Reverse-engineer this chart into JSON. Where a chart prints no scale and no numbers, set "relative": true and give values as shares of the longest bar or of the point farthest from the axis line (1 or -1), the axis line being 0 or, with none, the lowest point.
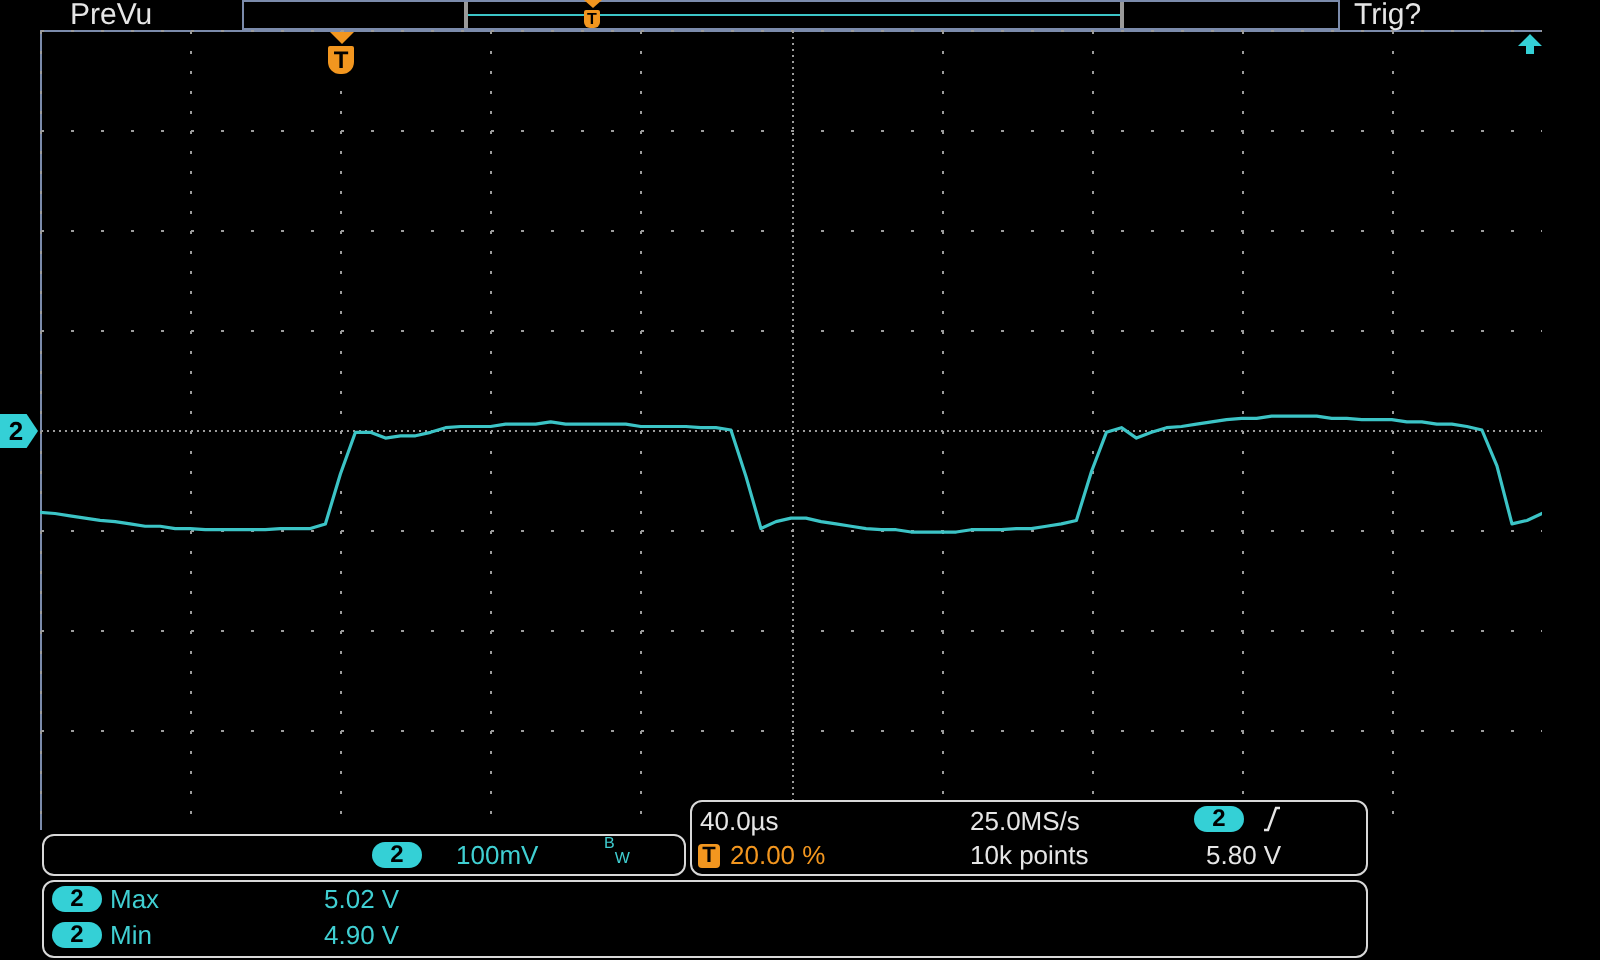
{
  "chart_data": {
    "type": "line",
    "relative": true,
    "categories": [
      null,
      null,
      null,
      null,
      null,
      null,
      null,
      null,
      null,
      null,
      null,
      null,
      null,
      null,
      null,
      null,
      null,
      null,
      null,
      null,
      null,
      null,
      null,
      null,
      null,
      null,
      null,
      null,
      null,
      null,
      null,
      null,
      null,
      null,
      null,
      null,
      null,
      null,
      null,
      null,
      null,
      null,
      null,
      null,
      null,
      null,
      null,
      null,
      null,
      null,
      null,
      null,
      null,
      null,
      null,
      null,
      null,
      null,
      null,
      null,
      null,
      null,
      null,
      null,
      null,
      null,
      null,
      null,
      null,
      null,
      null,
      null,
      null,
      null,
      null,
      null,
      null,
      null,
      null,
      null,
      null,
      null,
      null,
      null,
      null,
      null,
      null,
      null,
      null,
      null,
      null,
      null,
      null,
      null,
      null,
      null,
      null,
      null,
      null,
      null,
      null
    ],
    "values": [
      0.17,
      0.16,
      0.14,
      0.12,
      0.1,
      0.09,
      0.07,
      0.05,
      0.05,
      0.03,
      0.03,
      0.02,
      0.02,
      0.02,
      0.02,
      0.02,
      0.03,
      0.03,
      0.03,
      0.07,
      0.5,
      0.86,
      0.86,
      0.81,
      0.83,
      0.83,
      0.86,
      0.9,
      0.91,
      0.91,
      0.91,
      0.93,
      0.93,
      0.93,
      0.95,
      0.93,
      0.93,
      0.93,
      0.93,
      0.93,
      0.91,
      0.91,
      0.91,
      0.91,
      0.9,
      0.9,
      0.88,
      0.48,
      0.03,
      0.09,
      0.12,
      0.12,
      0.09,
      0.07,
      0.05,
      0.03,
      0.02,
      0.02,
      0,
      0,
      0,
      0,
      0.02,
      0.02,
      0.02,
      0.03,
      0.03,
      0.05,
      0.07,
      0.1,
      0.52,
      0.86,
      0.9,
      0.81,
      0.86,
      0.9,
      0.91,
      0.93,
      0.95,
      0.97,
      0.98,
      0.98,
      1,
      1,
      1,
      1,
      0.98,
      0.98,
      0.97,
      0.97,
      0.97,
      0.95,
      0.95,
      0.93,
      0.93,
      0.91,
      0.88,
      0.57,
      0.07,
      0.1,
      0.16
    ],
    "color": "#3cc4c6",
    "grid": true,
    "annotations": [
      "PreVu",
      "Trig?",
      "2",
      "T",
      "T",
      "2",
      "100mV",
      "$^{B}$$_{W}$",
      "40.0µs",
      "25.0MS/s",
      "2",
      "T",
      "20.00 %",
      "10k points",
      "5.80 V",
      "2",
      "Max",
      "5.02 V",
      "2",
      "Min",
      "4.90 V"
    ]
  }
}
